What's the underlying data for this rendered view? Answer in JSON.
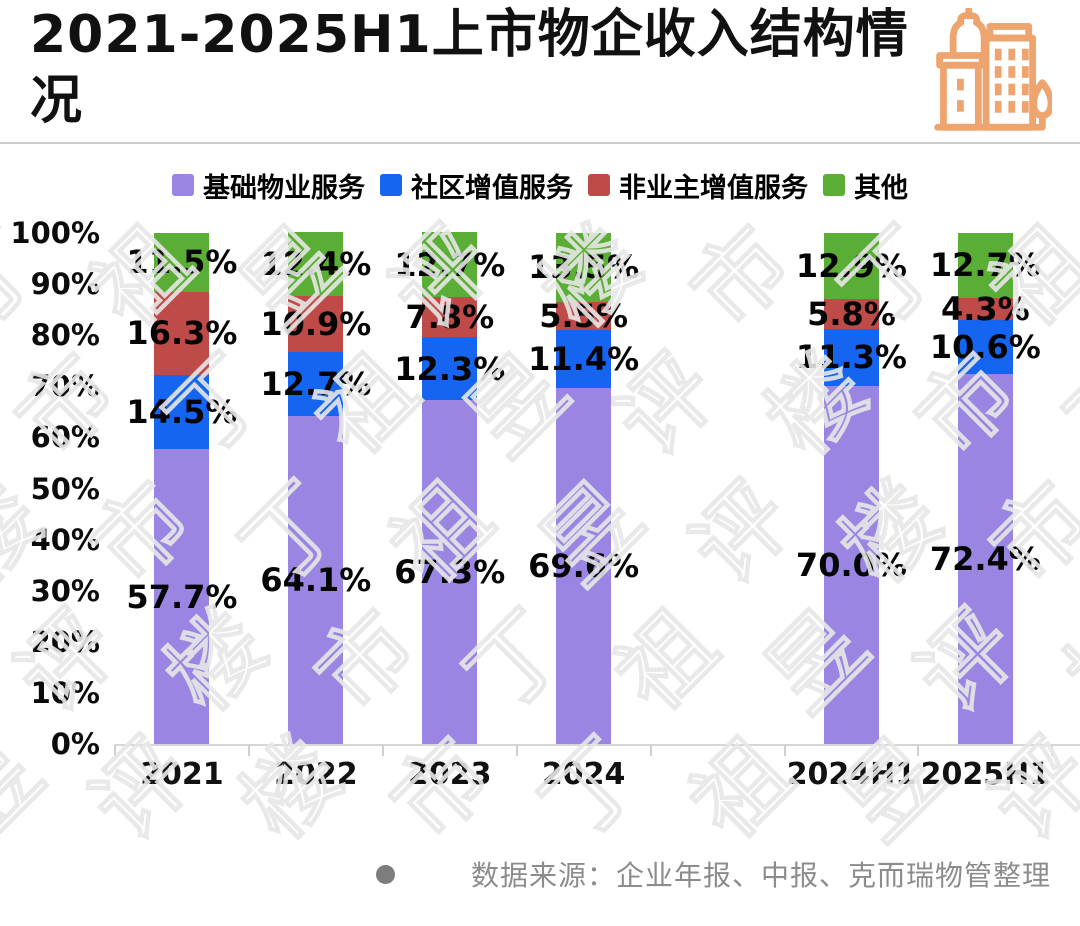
{
  "header": {
    "title": "2021-2025H1上市物企收入结构情况",
    "icon": "buildings-icon",
    "icon_color": "#EDA46E"
  },
  "chart_data": {
    "type": "bar",
    "subtype": "stacked-100-percent",
    "title": "2021-2025H1上市物企收入结构情况",
    "categories": [
      "2021",
      "2022",
      "2023",
      "2024",
      "2024H1",
      "2025H1"
    ],
    "series": [
      {
        "name": "基础物业服务",
        "color": "#9A86E2",
        "values": [
          57.7,
          64.1,
          67.3,
          69.6,
          70.0,
          72.4
        ]
      },
      {
        "name": "社区增值服务",
        "color": "#1565F0",
        "values": [
          14.5,
          12.7,
          12.3,
          11.4,
          11.3,
          10.6
        ]
      },
      {
        "name": "非业主增值服务",
        "color": "#BE4B48",
        "values": [
          16.3,
          10.9,
          7.8,
          5.5,
          5.8,
          4.3
        ]
      },
      {
        "name": "其他",
        "color": "#5AAD35",
        "values": [
          11.5,
          12.4,
          12.7,
          13.5,
          12.9,
          12.7
        ]
      }
    ],
    "ylim": [
      0,
      100
    ],
    "y_tick_step": 10,
    "y_tick_suffix": "%",
    "grid": false,
    "legend_position": "top",
    "gap_after_category": "2024",
    "label_format": "one-decimal-percent"
  },
  "footer": {
    "source": "数据来源：企业年报、中报、克而瑞物管整理"
  },
  "watermark": {
    "text": "丁祖昱评楼市"
  }
}
